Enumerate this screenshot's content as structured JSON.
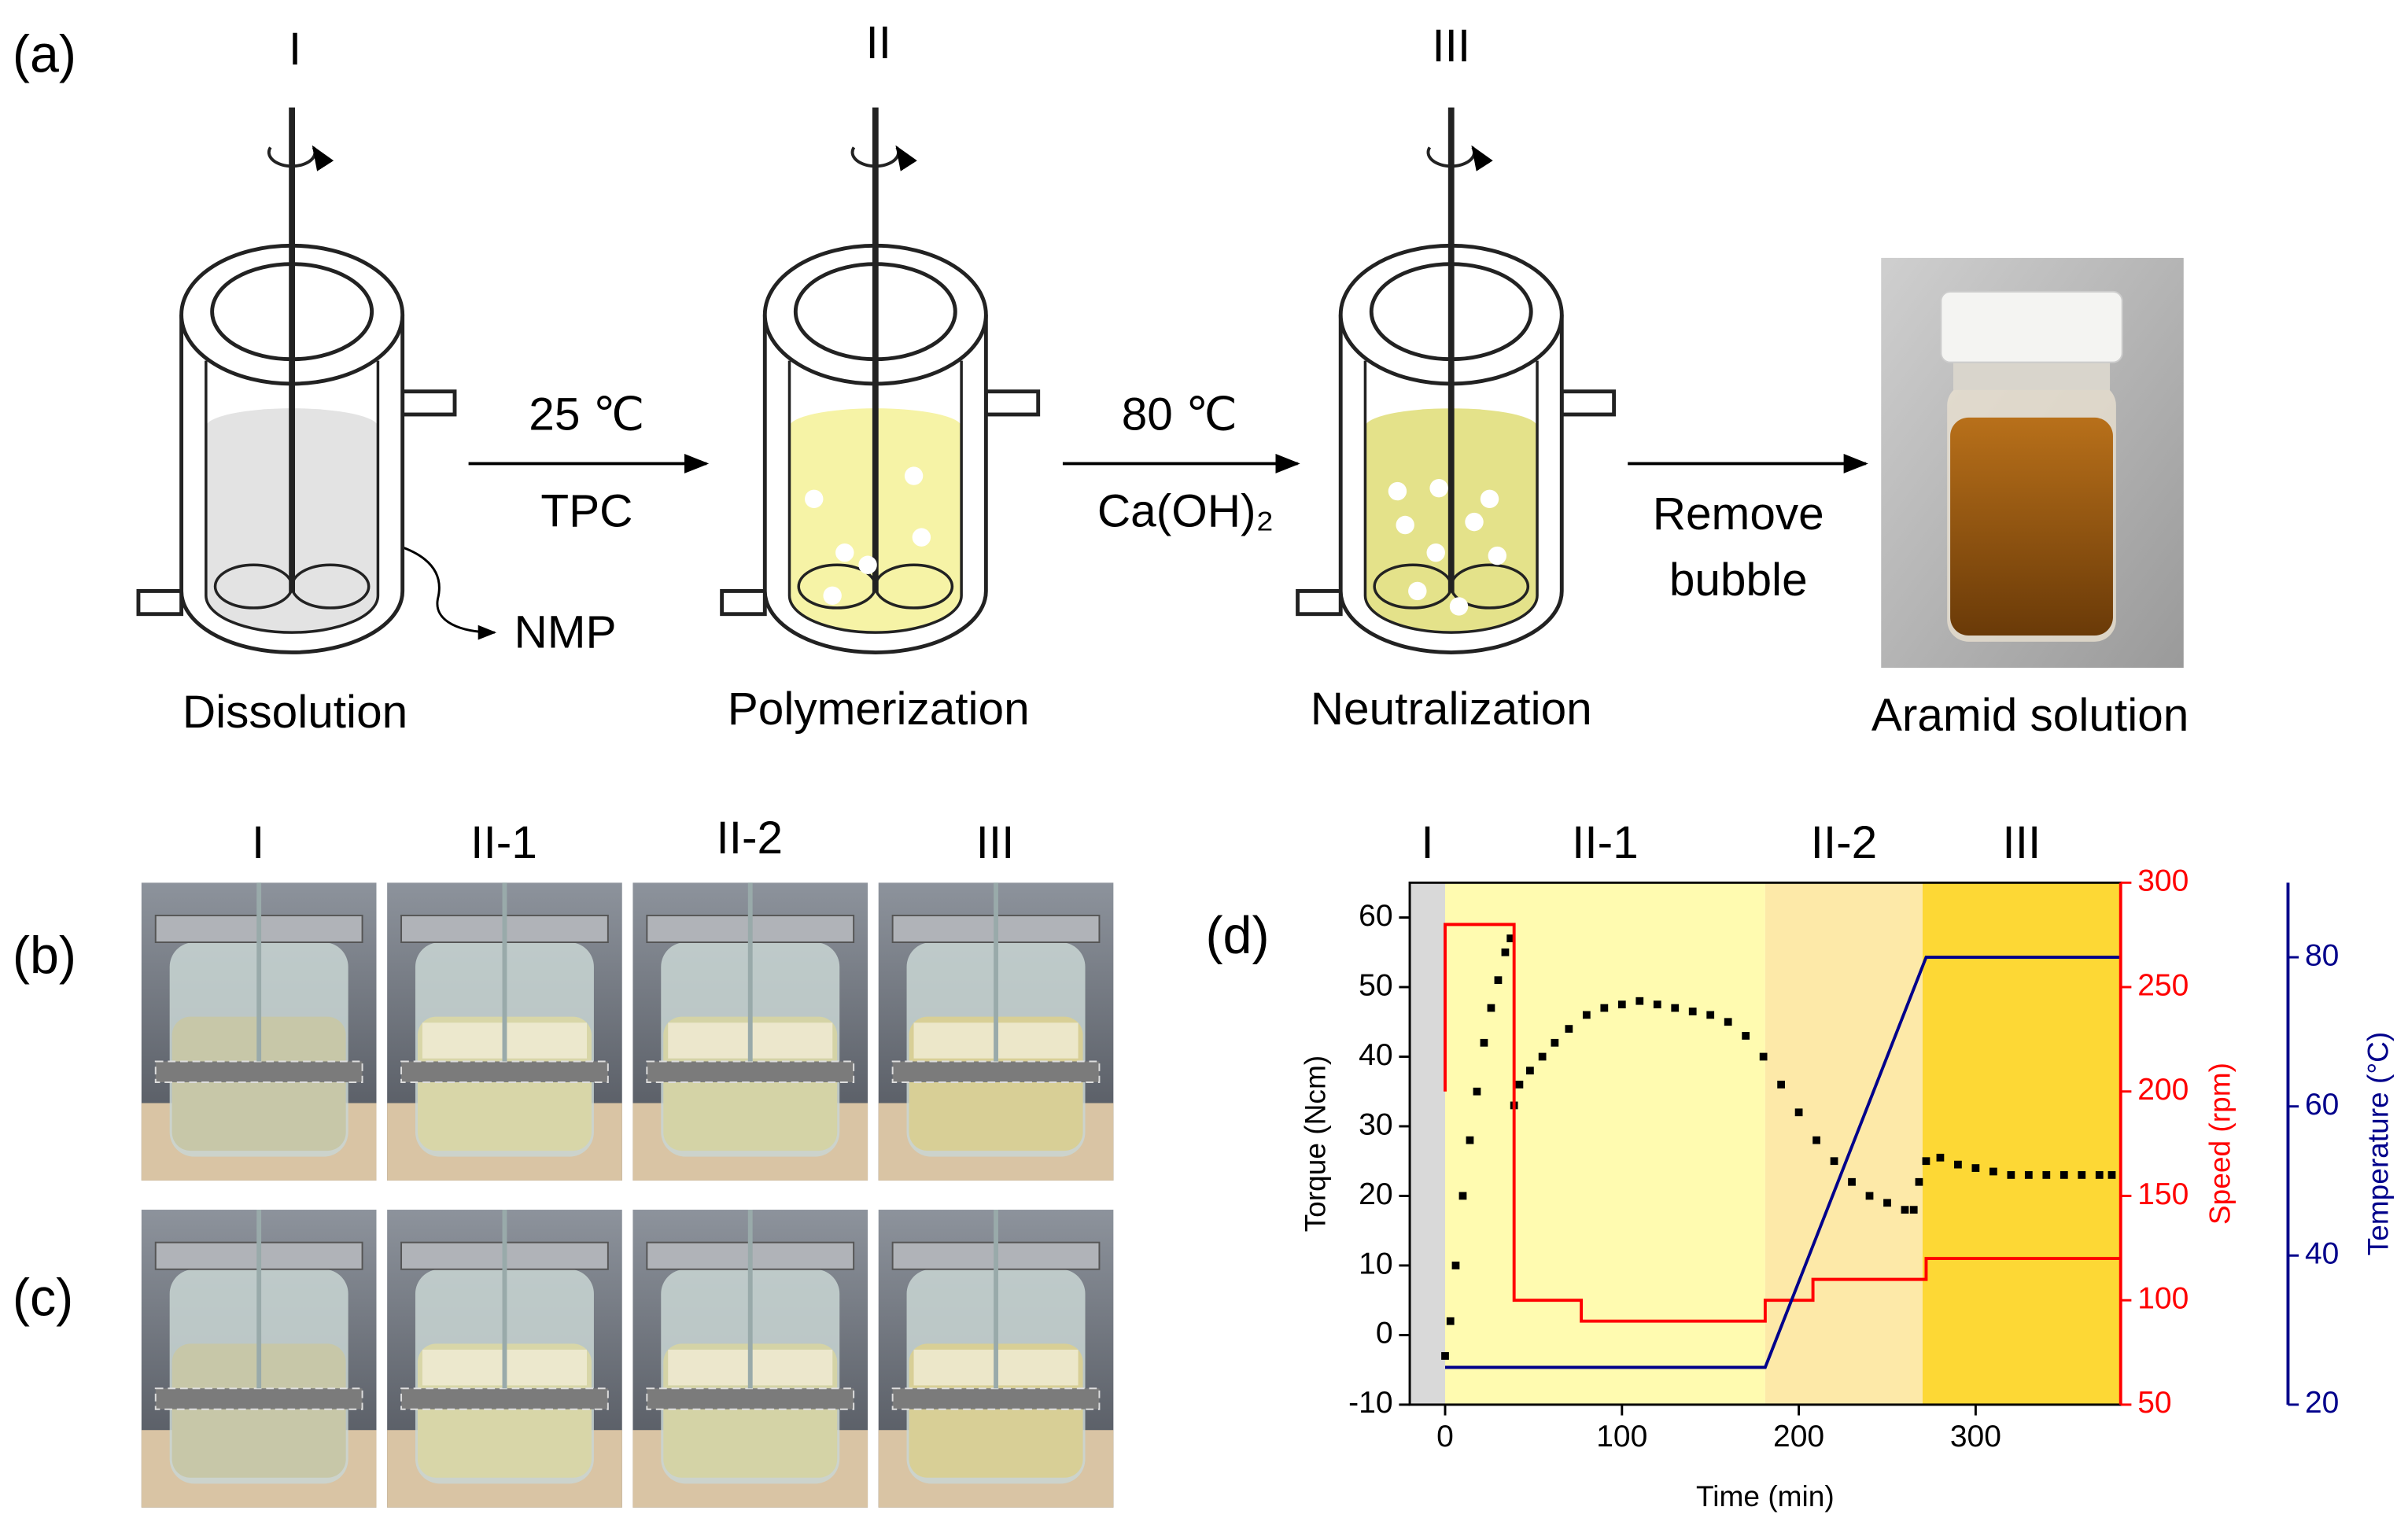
{
  "panel_a": {
    "label": "(a)",
    "stages": [
      {
        "numeral": "I",
        "name": "Dissolution"
      },
      {
        "numeral": "II",
        "name": "Polymerization"
      },
      {
        "numeral": "III",
        "name": "Neutralization"
      }
    ],
    "steps": [
      {
        "top": "25 ℃",
        "bottom": "TPC"
      },
      {
        "top": "80 ℃",
        "bottom": "Ca(OH)₂"
      },
      {
        "lines": [
          "Remove",
          "bubble"
        ]
      }
    ],
    "solvent": "NMP",
    "product": "Aramid solution"
  },
  "panel_b": {
    "label": "(b)"
  },
  "panel_c": {
    "label": "(c)"
  },
  "photo_columns": [
    "I",
    "II-1",
    "II-2",
    "III"
  ],
  "chart_data": {
    "type": "line",
    "panel_label": "(d)",
    "xlabel": "Time (min)",
    "ylabel": "Torque (Ncm)",
    "y2label": "Speed (rpm)",
    "y3label": "Temperature (°C)",
    "xlim": [
      -20,
      382
    ],
    "xticks": [
      0,
      100,
      200,
      300
    ],
    "ylim": [
      -10,
      65
    ],
    "yticks": [
      -10,
      0,
      10,
      20,
      30,
      40,
      50,
      60
    ],
    "y2lim": [
      50,
      300
    ],
    "y2ticks": [
      50,
      100,
      150,
      200,
      250,
      300
    ],
    "y2color": "#ff0000",
    "y3lim": [
      20,
      90
    ],
    "y3ticks": [
      20,
      40,
      60,
      80
    ],
    "y3color": "#00008b",
    "regions": [
      {
        "label": "I",
        "start": -20,
        "end": 0,
        "color": "#d9d9d9"
      },
      {
        "label": "II-1",
        "start": 0,
        "end": 181,
        "color": "#fffbb0"
      },
      {
        "label": "II-2",
        "start": 181,
        "end": 270,
        "color": "#fde9a8"
      },
      {
        "label": "III",
        "start": 270,
        "end": 382,
        "color": "#fdd835"
      }
    ],
    "series": [
      {
        "type": "scatter",
        "axis": "y",
        "color": "#000000",
        "x": [
          0,
          3,
          6,
          10,
          14,
          18,
          22,
          26,
          30,
          34,
          37,
          39,
          42,
          48,
          55,
          62,
          70,
          80,
          90,
          100,
          110,
          120,
          130,
          140,
          150,
          160,
          170,
          180,
          190,
          200,
          210,
          220,
          230,
          240,
          250,
          260,
          265,
          268,
          272,
          280,
          290,
          300,
          310,
          320,
          330,
          340,
          350,
          360,
          370,
          377
        ],
        "values": [
          -3,
          2,
          10,
          20,
          28,
          35,
          42,
          47,
          51,
          55,
          57,
          33,
          36,
          38,
          40,
          42,
          44,
          46,
          47,
          47.5,
          48,
          47.5,
          47,
          46.5,
          46,
          45,
          43,
          40,
          36,
          32,
          28,
          25,
          22,
          20,
          19,
          18,
          18,
          22,
          25,
          25.5,
          24.5,
          24,
          23.5,
          23,
          23,
          23,
          23,
          23,
          23,
          23
        ]
      },
      {
        "type": "line",
        "axis": "y2",
        "color": "#ff0000",
        "x": [
          0,
          0,
          39,
          39,
          77,
          77,
          181,
          181,
          208,
          208,
          272,
          272,
          382
        ],
        "values": [
          200,
          280,
          280,
          100,
          100,
          90,
          90,
          100,
          100,
          110,
          110,
          120,
          120
        ]
      },
      {
        "type": "line",
        "axis": "y3",
        "color": "#00008b",
        "x": [
          0,
          181,
          272,
          382
        ],
        "values": [
          25,
          25,
          80,
          80
        ]
      }
    ]
  }
}
